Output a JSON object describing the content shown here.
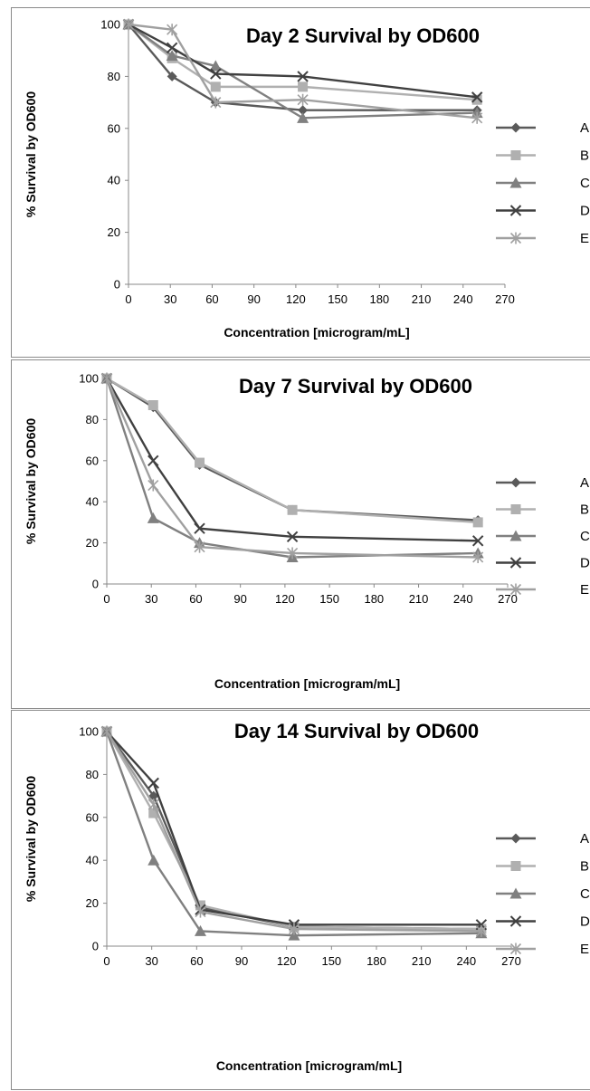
{
  "chart_data": [
    {
      "type": "line",
      "title": "Day 2 Survival by OD600",
      "xlabel": "Concentration [microgram/mL]",
      "ylabel": "% Survival  by OD600",
      "xlim": [
        0,
        270
      ],
      "ylim": [
        0,
        100
      ],
      "xticks": [
        0,
        30,
        60,
        90,
        120,
        150,
        180,
        210,
        240,
        270
      ],
      "yticks": [
        0,
        20,
        40,
        60,
        80,
        100
      ],
      "x": [
        0,
        31.25,
        62.5,
        125,
        250
      ],
      "legend_position": "right",
      "series": [
        {
          "name": "A",
          "values": [
            100,
            80,
            70,
            67,
            67
          ]
        },
        {
          "name": "B",
          "values": [
            100,
            87,
            76,
            76,
            71
          ]
        },
        {
          "name": "C",
          "values": [
            100,
            88,
            84,
            64,
            66
          ]
        },
        {
          "name": "D",
          "values": [
            100,
            91,
            81,
            80,
            72
          ]
        },
        {
          "name": "E",
          "values": [
            100,
            98,
            70,
            71,
            64
          ]
        }
      ]
    },
    {
      "type": "line",
      "title": "Day 7 Survival by OD600",
      "xlabel": "Concentration [microgram/mL]",
      "ylabel": "% Survival  by OD600",
      "xlim": [
        0,
        270
      ],
      "ylim": [
        0,
        100
      ],
      "xticks": [
        0,
        30,
        60,
        90,
        120,
        150,
        180,
        210,
        240,
        270
      ],
      "yticks": [
        0,
        20,
        40,
        60,
        80,
        100
      ],
      "x": [
        0,
        31.25,
        62.5,
        125,
        250
      ],
      "legend_position": "right",
      "series": [
        {
          "name": "A",
          "values": [
            100,
            86,
            58,
            36,
            31
          ]
        },
        {
          "name": "B",
          "values": [
            100,
            87,
            59,
            36,
            30
          ]
        },
        {
          "name": "C",
          "values": [
            100,
            32,
            20,
            13,
            15
          ]
        },
        {
          "name": "D",
          "values": [
            100,
            60,
            27,
            23,
            21
          ]
        },
        {
          "name": "E",
          "values": [
            100,
            48,
            18,
            15,
            13
          ]
        }
      ]
    },
    {
      "type": "line",
      "title": "Day 14 Survival by OD600",
      "xlabel": "Concentration [microgram/mL]",
      "ylabel": "% Survival  by OD600",
      "xlim": [
        0,
        270
      ],
      "ylim": [
        0,
        100
      ],
      "xticks": [
        0,
        30,
        60,
        90,
        120,
        150,
        180,
        210,
        240,
        270
      ],
      "yticks": [
        0,
        20,
        40,
        60,
        80,
        100
      ],
      "x": [
        0,
        31.25,
        62.5,
        125,
        250
      ],
      "legend_position": "right",
      "series": [
        {
          "name": "A",
          "values": [
            100,
            70,
            18,
            9,
            8
          ]
        },
        {
          "name": "B",
          "values": [
            100,
            62,
            19,
            9,
            8
          ]
        },
        {
          "name": "C",
          "values": [
            100,
            40,
            7,
            5,
            6
          ]
        },
        {
          "name": "D",
          "values": [
            100,
            76,
            17,
            10,
            10
          ]
        },
        {
          "name": "E",
          "values": [
            100,
            66,
            16,
            8,
            7
          ]
        }
      ]
    }
  ],
  "series_styles": [
    {
      "color": "#5a5a5a",
      "marker": "diamond"
    },
    {
      "color": "#b0b0b0",
      "marker": "square"
    },
    {
      "color": "#808080",
      "marker": "triangle"
    },
    {
      "color": "#404040",
      "marker": "x"
    },
    {
      "color": "#a0a0a0",
      "marker": "asterisk"
    }
  ]
}
